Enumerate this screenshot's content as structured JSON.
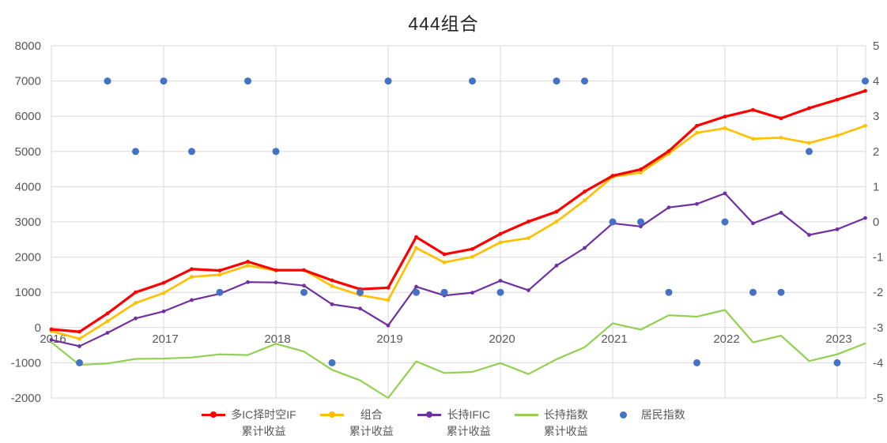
{
  "chart_data": {
    "type": "line",
    "title": "444组合",
    "x_unit": "quarter",
    "x_start": "2016Q1",
    "points_per_year": 4,
    "x_tick_labels": [
      "2016",
      "2017",
      "2018",
      "2019",
      "2020",
      "2021",
      "2022",
      "2023"
    ],
    "left_axis": {
      "min": -2000,
      "max": 8000,
      "step": 1000
    },
    "right_axis": {
      "min": -5,
      "max": 5,
      "step": 1
    },
    "grid": true,
    "legend_position": "bottom",
    "series": [
      {
        "name": "多IC择时空IF累计收益",
        "type": "line",
        "axis": "left",
        "color": "#FF0000",
        "markers": true,
        "values": [
          -50,
          -120,
          400,
          1000,
          1270,
          1660,
          1620,
          1870,
          1630,
          1630,
          1340,
          1090,
          1130,
          2570,
          2080,
          2230,
          2660,
          3010,
          3290,
          3860,
          4310,
          4490,
          5010,
          5730,
          5990,
          6180,
          5940,
          6230,
          6470,
          6720
        ]
      },
      {
        "name": "组合累计收益",
        "type": "line",
        "axis": "left",
        "color": "#FFC000",
        "markers": true,
        "values": [
          -100,
          -320,
          180,
          700,
          980,
          1440,
          1500,
          1760,
          1620,
          1630,
          1180,
          920,
          780,
          2260,
          1850,
          2010,
          2420,
          2540,
          3010,
          3610,
          4280,
          4400,
          4940,
          5530,
          5660,
          5360,
          5390,
          5240,
          5450,
          5730
        ]
      },
      {
        "name": "长持IFIC累计收益",
        "type": "line",
        "axis": "left",
        "color": "#7030A0",
        "markers": true,
        "values": [
          -350,
          -530,
          -150,
          260,
          460,
          780,
          960,
          1290,
          1280,
          1190,
          660,
          540,
          60,
          1160,
          910,
          990,
          1330,
          1060,
          1760,
          2260,
          2960,
          2870,
          3410,
          3510,
          3810,
          2960,
          3260,
          2630,
          2790,
          3110
        ]
      },
      {
        "name": "长持指数累计收益",
        "type": "line",
        "axis": "left",
        "color": "#92D050",
        "markers": false,
        "values": [
          -420,
          -1060,
          -1020,
          -890,
          -880,
          -850,
          -760,
          -780,
          -460,
          -680,
          -1200,
          -1500,
          -2000,
          -960,
          -1290,
          -1260,
          -1010,
          -1320,
          -900,
          -560,
          120,
          -60,
          350,
          310,
          500,
          -420,
          -230,
          -950,
          -760,
          -450
        ]
      },
      {
        "name": "居民指数",
        "type": "scatter",
        "axis": "right",
        "color": "#4472C4",
        "values": [
          null,
          -4,
          4,
          2,
          4,
          2,
          -2,
          4,
          2,
          -2,
          -4,
          -2,
          4,
          -2,
          -2,
          4,
          -2,
          null,
          4,
          4,
          0,
          0,
          -2,
          -4,
          0,
          -2,
          -2,
          2,
          -4,
          4
        ]
      }
    ]
  },
  "legend": {
    "items": [
      {
        "line1": "多IC择时空IF",
        "line2": "累计收益",
        "color": "#FF0000",
        "marker": "line-dot"
      },
      {
        "line1": "组合",
        "line2": "累计收益",
        "color": "#FFC000",
        "marker": "line-dot"
      },
      {
        "line1": "长持IFIC",
        "line2": "累计收益",
        "color": "#7030A0",
        "marker": "line-dot"
      },
      {
        "line1": "长持指数",
        "line2": "累计收益",
        "color": "#92D050",
        "marker": "line"
      },
      {
        "line1": "居民指数",
        "line2": "",
        "color": "#4472C4",
        "marker": "dot"
      }
    ]
  }
}
